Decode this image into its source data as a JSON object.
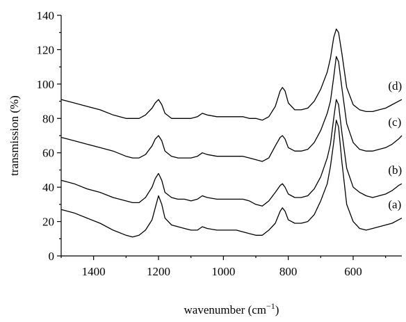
{
  "chart_data": {
    "type": "line",
    "xlabel": "wavenumber (cm",
    "xlabel_sup": "−1",
    "xlabel_end": ")",
    "ylabel": "transmission (%)",
    "xlim": [
      1500,
      450
    ],
    "x_reversed": true,
    "ylim": [
      0,
      140
    ],
    "x_ticks": [
      1400,
      1200,
      1000,
      800,
      600
    ],
    "y_ticks": [
      0,
      20,
      40,
      60,
      80,
      100,
      120,
      140
    ],
    "grid": false,
    "series": [
      {
        "name": "(a)",
        "points": [
          [
            1500,
            27
          ],
          [
            1460,
            25
          ],
          [
            1420,
            22
          ],
          [
            1380,
            19
          ],
          [
            1340,
            15
          ],
          [
            1300,
            12
          ],
          [
            1280,
            11
          ],
          [
            1260,
            12
          ],
          [
            1240,
            15
          ],
          [
            1220,
            21
          ],
          [
            1210,
            28
          ],
          [
            1200,
            35
          ],
          [
            1190,
            30
          ],
          [
            1180,
            22
          ],
          [
            1160,
            18
          ],
          [
            1140,
            17
          ],
          [
            1120,
            16
          ],
          [
            1100,
            15
          ],
          [
            1080,
            15
          ],
          [
            1065,
            17
          ],
          [
            1050,
            16
          ],
          [
            1020,
            15
          ],
          [
            1000,
            15
          ],
          [
            980,
            15
          ],
          [
            960,
            15
          ],
          [
            940,
            14
          ],
          [
            920,
            13
          ],
          [
            900,
            12
          ],
          [
            880,
            12
          ],
          [
            860,
            15
          ],
          [
            840,
            19
          ],
          [
            825,
            26
          ],
          [
            818,
            28
          ],
          [
            810,
            26
          ],
          [
            800,
            21
          ],
          [
            780,
            19
          ],
          [
            760,
            19
          ],
          [
            740,
            20
          ],
          [
            720,
            24
          ],
          [
            700,
            32
          ],
          [
            680,
            42
          ],
          [
            670,
            52
          ],
          [
            660,
            66
          ],
          [
            652,
            79
          ],
          [
            645,
            75
          ],
          [
            635,
            55
          ],
          [
            620,
            30
          ],
          [
            600,
            20
          ],
          [
            580,
            16
          ],
          [
            560,
            15
          ],
          [
            540,
            16
          ],
          [
            520,
            17
          ],
          [
            500,
            18
          ],
          [
            480,
            19
          ],
          [
            460,
            21
          ],
          [
            450,
            22
          ]
        ]
      },
      {
        "name": "(b)",
        "points": [
          [
            1500,
            44
          ],
          [
            1460,
            42
          ],
          [
            1420,
            39
          ],
          [
            1380,
            37
          ],
          [
            1340,
            34
          ],
          [
            1300,
            32
          ],
          [
            1280,
            31
          ],
          [
            1260,
            31
          ],
          [
            1240,
            34
          ],
          [
            1220,
            40
          ],
          [
            1210,
            45
          ],
          [
            1200,
            48
          ],
          [
            1190,
            44
          ],
          [
            1180,
            37
          ],
          [
            1160,
            34
          ],
          [
            1140,
            33
          ],
          [
            1120,
            33
          ],
          [
            1100,
            32
          ],
          [
            1080,
            33
          ],
          [
            1065,
            35
          ],
          [
            1050,
            34
          ],
          [
            1020,
            33
          ],
          [
            1000,
            33
          ],
          [
            980,
            33
          ],
          [
            960,
            33
          ],
          [
            940,
            33
          ],
          [
            920,
            32
          ],
          [
            900,
            30
          ],
          [
            880,
            29
          ],
          [
            860,
            32
          ],
          [
            840,
            37
          ],
          [
            825,
            41
          ],
          [
            818,
            42
          ],
          [
            810,
            40
          ],
          [
            800,
            36
          ],
          [
            780,
            34
          ],
          [
            760,
            34
          ],
          [
            740,
            35
          ],
          [
            720,
            39
          ],
          [
            700,
            46
          ],
          [
            680,
            57
          ],
          [
            670,
            65
          ],
          [
            660,
            80
          ],
          [
            652,
            91
          ],
          [
            645,
            88
          ],
          [
            635,
            72
          ],
          [
            620,
            51
          ],
          [
            600,
            40
          ],
          [
            580,
            37
          ],
          [
            560,
            35
          ],
          [
            540,
            34
          ],
          [
            520,
            35
          ],
          [
            500,
            36
          ],
          [
            480,
            38
          ],
          [
            460,
            41
          ],
          [
            450,
            42
          ]
        ]
      },
      {
        "name": "(c)",
        "points": [
          [
            1500,
            69
          ],
          [
            1460,
            67
          ],
          [
            1420,
            65
          ],
          [
            1380,
            63
          ],
          [
            1340,
            61
          ],
          [
            1300,
            58
          ],
          [
            1280,
            57
          ],
          [
            1260,
            57
          ],
          [
            1240,
            59
          ],
          [
            1220,
            64
          ],
          [
            1210,
            68
          ],
          [
            1200,
            70
          ],
          [
            1190,
            67
          ],
          [
            1180,
            61
          ],
          [
            1160,
            58
          ],
          [
            1140,
            57
          ],
          [
            1120,
            57
          ],
          [
            1100,
            57
          ],
          [
            1080,
            58
          ],
          [
            1065,
            60
          ],
          [
            1050,
            59
          ],
          [
            1020,
            58
          ],
          [
            1000,
            58
          ],
          [
            980,
            58
          ],
          [
            960,
            58
          ],
          [
            940,
            58
          ],
          [
            920,
            57
          ],
          [
            900,
            56
          ],
          [
            880,
            55
          ],
          [
            860,
            57
          ],
          [
            840,
            64
          ],
          [
            825,
            69
          ],
          [
            818,
            70
          ],
          [
            810,
            68
          ],
          [
            800,
            63
          ],
          [
            780,
            61
          ],
          [
            760,
            61
          ],
          [
            740,
            62
          ],
          [
            720,
            66
          ],
          [
            700,
            73
          ],
          [
            680,
            83
          ],
          [
            670,
            90
          ],
          [
            660,
            104
          ],
          [
            652,
            116
          ],
          [
            645,
            113
          ],
          [
            635,
            98
          ],
          [
            620,
            77
          ],
          [
            600,
            66
          ],
          [
            580,
            62
          ],
          [
            560,
            61
          ],
          [
            540,
            61
          ],
          [
            520,
            62
          ],
          [
            500,
            63
          ],
          [
            480,
            65
          ],
          [
            460,
            68
          ],
          [
            450,
            70
          ]
        ]
      },
      {
        "name": "(d)",
        "points": [
          [
            1500,
            91
          ],
          [
            1460,
            89
          ],
          [
            1420,
            87
          ],
          [
            1380,
            85
          ],
          [
            1340,
            82
          ],
          [
            1300,
            80
          ],
          [
            1280,
            80
          ],
          [
            1260,
            80
          ],
          [
            1240,
            82
          ],
          [
            1220,
            86
          ],
          [
            1210,
            89
          ],
          [
            1200,
            91
          ],
          [
            1190,
            88
          ],
          [
            1180,
            83
          ],
          [
            1160,
            80
          ],
          [
            1140,
            80
          ],
          [
            1120,
            80
          ],
          [
            1100,
            80
          ],
          [
            1080,
            81
          ],
          [
            1065,
            83
          ],
          [
            1050,
            82
          ],
          [
            1020,
            81
          ],
          [
            1000,
            81
          ],
          [
            980,
            81
          ],
          [
            960,
            81
          ],
          [
            940,
            81
          ],
          [
            920,
            80
          ],
          [
            900,
            80
          ],
          [
            880,
            79
          ],
          [
            860,
            81
          ],
          [
            840,
            87
          ],
          [
            825,
            96
          ],
          [
            818,
            98
          ],
          [
            810,
            96
          ],
          [
            800,
            89
          ],
          [
            780,
            85
          ],
          [
            760,
            85
          ],
          [
            740,
            86
          ],
          [
            720,
            90
          ],
          [
            700,
            97
          ],
          [
            680,
            107
          ],
          [
            670,
            115
          ],
          [
            660,
            127
          ],
          [
            652,
            132
          ],
          [
            645,
            130
          ],
          [
            635,
            118
          ],
          [
            620,
            98
          ],
          [
            600,
            88
          ],
          [
            580,
            85
          ],
          [
            560,
            84
          ],
          [
            540,
            84
          ],
          [
            520,
            85
          ],
          [
            500,
            86
          ],
          [
            480,
            88
          ],
          [
            460,
            90
          ],
          [
            450,
            91
          ]
        ]
      }
    ]
  }
}
